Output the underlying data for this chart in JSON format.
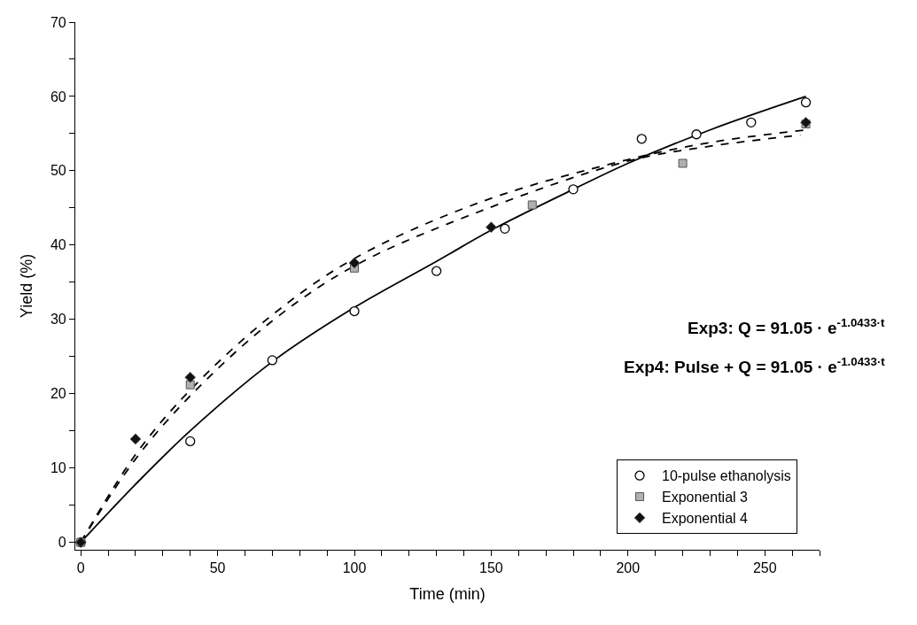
{
  "chart_data": {
    "type": "scatter",
    "xlabel": "Time (min)",
    "ylabel": "Yield (%)",
    "xlim": [
      -2,
      270
    ],
    "ylim": [
      -1,
      70
    ],
    "xticks": [
      0,
      {
        "value": 10,
        "label": null
      },
      {
        "value": 20,
        "label": null
      },
      {
        "value": 30,
        "label": null
      },
      {
        "value": 40,
        "label": null
      },
      50,
      {
        "value": 60,
        "label": null
      },
      {
        "value": 70,
        "label": null
      },
      {
        "value": 80,
        "label": null
      },
      {
        "value": 90,
        "label": null
      },
      100,
      {
        "value": 110,
        "label": null
      },
      {
        "value": 120,
        "label": null
      },
      {
        "value": 130,
        "label": null
      },
      {
        "value": 140,
        "label": null
      },
      150,
      {
        "value": 160,
        "label": null
      },
      {
        "value": 170,
        "label": null
      },
      {
        "value": 180,
        "label": null
      },
      {
        "value": 190,
        "label": null
      },
      200,
      {
        "value": 210,
        "label": null
      },
      {
        "value": 220,
        "label": null
      },
      {
        "value": 230,
        "label": null
      },
      {
        "value": 240,
        "label": null
      },
      250,
      {
        "value": 260,
        "label": null
      },
      {
        "value": 270,
        "label": null
      }
    ],
    "yticks": [
      0,
      {
        "value": 5,
        "label": null
      },
      10,
      {
        "value": 15,
        "label": null
      },
      20,
      {
        "value": 25,
        "label": null
      },
      30,
      {
        "value": 35,
        "label": null
      },
      40,
      {
        "value": 45,
        "label": null
      },
      50,
      {
        "value": 55,
        "label": null
      },
      60,
      {
        "value": 65,
        "label": null
      },
      70
    ],
    "legend": "bottom right",
    "series": [
      {
        "type": "line",
        "color": "#000000",
        "marker": "none",
        "line_style": "solid",
        "x": [
          0,
          20,
          40,
          70,
          100,
          130,
          150,
          180,
          200,
          230,
          265
        ],
        "values": [
          0,
          7.8,
          15,
          24.3,
          31.6,
          37.8,
          42,
          47.5,
          51,
          55.5,
          60
        ]
      },
      {
        "type": "line",
        "color": "#000000",
        "marker": "none",
        "line_style": "dashed",
        "x": [
          0,
          20,
          40,
          70,
          100,
          147,
          200,
          230,
          265
        ],
        "values": [
          0,
          11.8,
          20.5,
          30.6,
          38.2,
          45.9,
          51.5,
          53.8,
          55.5
        ]
      },
      {
        "type": "line",
        "color": "#000000",
        "marker": "none",
        "line_style": "dashed",
        "x": [
          0,
          20,
          40,
          70,
          100,
          147,
          200,
          230,
          263
        ],
        "values": [
          0,
          11.2,
          19.7,
          29.8,
          37.2,
          44.7,
          51.3,
          53.3,
          54.8
        ]
      },
      {
        "name": "10-pulse ethanolysis",
        "color": "#000000",
        "marker": "circle",
        "x": [
          0,
          40,
          70,
          100,
          130,
          155,
          180,
          205,
          225,
          245,
          265
        ],
        "values": [
          0,
          13.6,
          24.5,
          31.1,
          36.5,
          42.2,
          47.5,
          54.3,
          54.9,
          56.5,
          59.2
        ]
      },
      {
        "name": "Exponential 3",
        "color": "#b0b0b0",
        "marker": "square",
        "x": [
          0,
          40,
          100,
          165,
          220,
          265
        ],
        "values": [
          0,
          21.2,
          36.9,
          45.4,
          51.0,
          56.3
        ]
      },
      {
        "name": "Exponential 4",
        "color": "#111111",
        "marker": "diamond",
        "x": [
          0,
          20,
          40,
          100,
          150,
          265
        ],
        "values": [
          0,
          13.9,
          22.2,
          37.6,
          42.4,
          56.5
        ]
      }
    ],
    "annotations": [
      "Exp3: Q = 91.05 · e$^{-1.0433·t}$",
      "Exp4: Pulse + Q = 91.05 · e$^{-1.0433·t}$"
    ]
  }
}
